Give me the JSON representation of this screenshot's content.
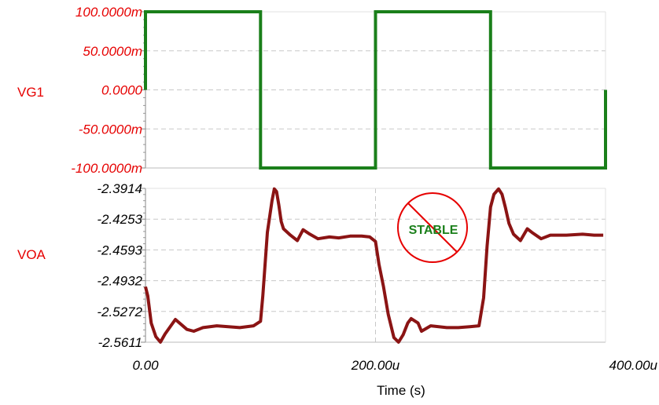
{
  "chart_data": [
    {
      "type": "line",
      "signal": "VG1",
      "color": "#1a7f1a",
      "label_color": "#e60000",
      "ylim": [
        -0.1,
        0.1
      ],
      "yticks": [
        "100.0000m",
        "50.0000m",
        "0.0000",
        "-50.0000m",
        "-100.0000m"
      ],
      "x": [
        0,
        0,
        2,
        2,
        100,
        100,
        200,
        200,
        300,
        300,
        400,
        400
      ],
      "y": [
        0.0,
        0.1,
        0.1,
        0.1,
        0.1,
        -0.1,
        -0.1,
        0.1,
        0.1,
        -0.1,
        -0.1,
        0.0
      ]
    },
    {
      "type": "line",
      "signal": "VOA",
      "color": "#8b1414",
      "label_color": "#e60000",
      "ylim": [
        -2.5611,
        -2.3914
      ],
      "yticks": [
        "-2.3914",
        "-2.4253",
        "-2.4593",
        "-2.4932",
        "-2.5272",
        "-2.5611"
      ],
      "x": [
        0,
        2,
        5,
        9,
        13,
        17,
        26,
        36,
        42,
        50,
        62,
        72,
        82,
        94,
        100,
        102,
        106,
        110,
        112,
        114,
        116,
        118,
        120,
        126,
        132,
        137,
        143,
        150,
        160,
        168,
        178,
        188,
        195,
        200,
        203,
        207,
        211,
        216,
        220,
        224,
        228,
        231,
        237,
        240,
        248,
        262,
        272,
        282,
        290,
        294,
        297,
        300,
        303,
        307,
        310,
        313,
        316,
        320,
        326,
        332,
        336,
        344,
        352,
        366,
        380,
        390,
        398
      ],
      "y": [
        -2.5,
        -2.51,
        -2.54,
        -2.555,
        -2.561,
        -2.552,
        -2.536,
        -2.547,
        -2.549,
        -2.545,
        -2.543,
        -2.544,
        -2.545,
        -2.543,
        -2.538,
        -2.51,
        -2.44,
        -2.405,
        -2.392,
        -2.395,
        -2.41,
        -2.428,
        -2.436,
        -2.443,
        -2.449,
        -2.437,
        -2.442,
        -2.447,
        -2.445,
        -2.446,
        -2.444,
        -2.444,
        -2.445,
        -2.45,
        -2.475,
        -2.5,
        -2.53,
        -2.556,
        -2.561,
        -2.553,
        -2.54,
        -2.535,
        -2.54,
        -2.549,
        -2.543,
        -2.545,
        -2.545,
        -2.544,
        -2.543,
        -2.512,
        -2.455,
        -2.412,
        -2.398,
        -2.392,
        -2.398,
        -2.413,
        -2.43,
        -2.442,
        -2.449,
        -2.436,
        -2.44,
        -2.447,
        -2.443,
        -2.443,
        -2.442,
        -2.443,
        -2.443
      ]
    }
  ],
  "xaxis": {
    "title": "Time (s)",
    "ticks": [
      "0.00",
      "200.00u",
      "400.00u"
    ],
    "tick_values": [
      0,
      200,
      400
    ],
    "xlim": [
      0,
      400
    ]
  },
  "badge": {
    "text": "STABLE",
    "color": "#e60000",
    "text_color": "#1a7f1a"
  }
}
